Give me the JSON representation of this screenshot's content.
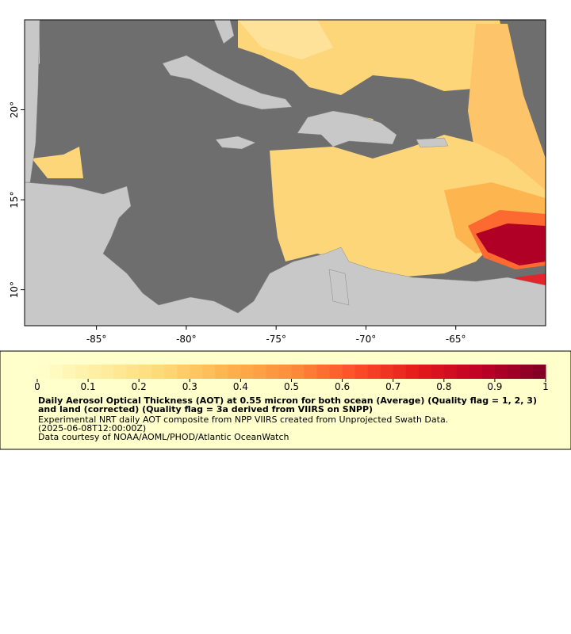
{
  "map": {
    "xlim": [
      -89,
      -60
    ],
    "ylim": [
      8,
      25
    ],
    "xticks": [
      {
        "value": -85,
        "label": "-85°"
      },
      {
        "value": -80,
        "label": "-80°"
      },
      {
        "value": -75,
        "label": "-75°"
      },
      {
        "value": -70,
        "label": "-70°"
      },
      {
        "value": -65,
        "label": "-65°"
      }
    ],
    "yticks": [
      {
        "value": 10,
        "label": "10°"
      },
      {
        "value": 15,
        "label": "15°"
      },
      {
        "value": 20,
        "label": "20°"
      }
    ]
  },
  "colorbar": {
    "lim": [
      0,
      1
    ],
    "ticks": [
      0,
      0.1,
      0.2,
      0.3,
      0.4,
      0.5,
      0.6,
      0.7,
      0.8,
      0.9,
      1
    ],
    "colors": [
      "#ffffcc",
      "#ffeda0",
      "#fed976",
      "#feb24c",
      "#fd8d3c",
      "#fc4e2a",
      "#e31a1c",
      "#bd0026",
      "#800026"
    ]
  },
  "caption": {
    "title": "Daily Aerosol Optical Thickness (AOT) at 0.55 micron for both ocean (Average) (Quality flag = 1, 2, 3) and land (corrected) (Quality flag = 3a derived from VIIRS on SNPP)",
    "description": "Experimental NRT daily AOT composite from NPP VIIRS created from Unprojected Swath Data.",
    "time": "(2025-06-08T12:00:00Z)",
    "credit": "Data courtesy of NOAA/AOML/PHOD/Atlantic OceanWatch"
  }
}
